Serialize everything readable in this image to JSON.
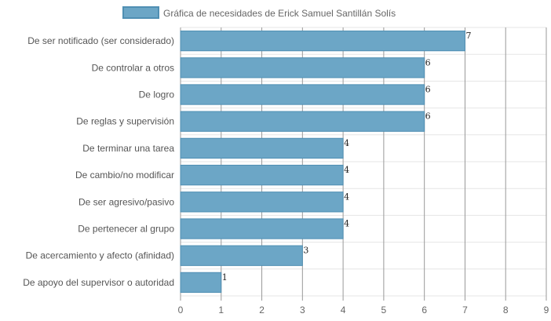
{
  "chart_data": {
    "type": "bar",
    "orientation": "horizontal",
    "legend": {
      "label": "Gráfica de necesidades de Erick Samuel Santillán Solís",
      "placement": "top-center"
    },
    "categories": [
      "De ser notificado (ser considerado)",
      "De controlar a otros",
      "De logro",
      "De reglas y supervisión",
      "De terminar una tarea",
      "De cambio/no modificar",
      "De ser agresivo/pasivo",
      "De pertenecer al grupo",
      "De acercamiento y afecto (afinidad)",
      "De apoyo del supervisor o autoridad"
    ],
    "series": [
      {
        "name": "Gráfica de necesidades de Erick Samuel Santillán Solís",
        "values": [
          7,
          6,
          6,
          6,
          4,
          4,
          4,
          4,
          3,
          1
        ]
      }
    ],
    "xlim": [
      0,
      9
    ],
    "x_ticks": [
      "0",
      "1",
      "2",
      "3",
      "4",
      "5",
      "6",
      "7",
      "8",
      "9"
    ],
    "grid": true,
    "colors": {
      "bar_fill": "#6ca6c6",
      "bar_stroke": "#4f8fb3",
      "grid_vertical": "#999999",
      "grid_horizontal": "#e6e6e6"
    }
  }
}
